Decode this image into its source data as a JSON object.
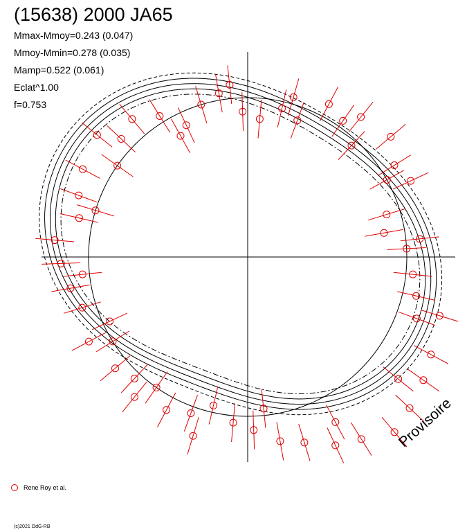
{
  "header": {
    "title": "(15638) 2000 JA65",
    "stats": [
      "Mmax-Mmoy=0.243 (0.047)",
      "Mmoy-Mmin=0.278 (0.035)",
      "Mamp=0.522 (0.061)",
      "Eclat^1.00",
      "f=0.753"
    ]
  },
  "legend": {
    "observer": "Rene Roy et al."
  },
  "footer": {
    "copyright": "(c)2021 OdG-RB",
    "stamp": "Provisoire"
  },
  "colors": {
    "points": "#e00000",
    "curves": "#000000"
  },
  "chart_data": {
    "type": "polar-lightcurve",
    "reference_circle_radius_mag": 0.23,
    "fit_curve_offset_mag": 0.245,
    "fit_curve_amplitude": 0.6,
    "points": [
      {
        "angle": 3,
        "r": 0.23
      },
      {
        "angle": 10,
        "r": 0.2
      },
      {
        "angle": 17,
        "r": 0.21
      },
      {
        "angle": 25,
        "r": 0.26
      },
      {
        "angle": 32,
        "r": 0.25
      },
      {
        "angle": 40,
        "r": 0.27
      },
      {
        "angle": 47,
        "r": 0.22
      },
      {
        "angle": 55,
        "r": 0.24
      },
      {
        "angle": 62,
        "r": 0.25
      },
      {
        "angle": 70,
        "r": 0.21
      },
      {
        "angle": 77,
        "r": 0.22
      },
      {
        "angle": 85,
        "r": 0.2
      },
      {
        "angle": 92,
        "r": 0.21
      },
      {
        "angle": 100,
        "r": 0.24
      },
      {
        "angle": 107,
        "r": 0.23
      },
      {
        "angle": 115,
        "r": 0.21
      },
      {
        "angle": 122,
        "r": 0.24
      },
      {
        "angle": 130,
        "r": 0.26
      },
      {
        "angle": 137,
        "r": 0.25
      },
      {
        "angle": 145,
        "r": 0.23
      },
      {
        "angle": 152,
        "r": 0.27
      },
      {
        "angle": 160,
        "r": 0.26
      },
      {
        "angle": 167,
        "r": 0.25
      },
      {
        "angle": 175,
        "r": 0.28
      },
      {
        "angle": 182,
        "r": 0.27
      },
      {
        "angle": 190,
        "r": 0.26
      },
      {
        "angle": 197,
        "r": 0.25
      },
      {
        "angle": 205,
        "r": 0.22
      },
      {
        "angle": 212,
        "r": 0.23
      },
      {
        "angle": 220,
        "r": 0.25
      },
      {
        "angle": 227,
        "r": 0.24
      },
      {
        "angle": 235,
        "r": 0.23
      },
      {
        "angle": 242,
        "r": 0.25
      },
      {
        "angle": 250,
        "r": 0.24
      },
      {
        "angle": 257,
        "r": 0.22
      },
      {
        "angle": 265,
        "r": 0.24
      },
      {
        "angle": 272,
        "r": 0.25
      },
      {
        "angle": 280,
        "r": 0.27
      },
      {
        "angle": 287,
        "r": 0.28
      },
      {
        "angle": 295,
        "r": 0.3
      },
      {
        "angle": 302,
        "r": 0.31
      },
      {
        "angle": 310,
        "r": 0.33
      },
      {
        "angle": 317,
        "r": 0.32
      },
      {
        "angle": 325,
        "r": 0.31
      },
      {
        "angle": 332,
        "r": 0.3
      },
      {
        "angle": 340,
        "r": 0.26
      },
      {
        "angle": 347,
        "r": 0.25
      },
      {
        "angle": 354,
        "r": 0.24
      },
      {
        "angle": 6,
        "r": 0.25
      },
      {
        "angle": 29,
        "r": 0.23
      },
      {
        "angle": 51,
        "r": 0.26
      },
      {
        "angle": 74,
        "r": 0.24
      },
      {
        "angle": 96,
        "r": 0.25
      },
      {
        "angle": 119,
        "r": 0.2
      },
      {
        "angle": 141,
        "r": 0.28
      },
      {
        "angle": 163,
        "r": 0.23
      },
      {
        "angle": 186,
        "r": 0.24
      },
      {
        "angle": 208,
        "r": 0.26
      },
      {
        "angle": 231,
        "r": 0.26
      },
      {
        "angle": 253,
        "r": 0.27
      },
      {
        "angle": 276,
        "r": 0.22
      },
      {
        "angle": 298,
        "r": 0.27
      },
      {
        "angle": 321,
        "r": 0.28
      },
      {
        "angle": 343,
        "r": 0.29
      }
    ]
  }
}
